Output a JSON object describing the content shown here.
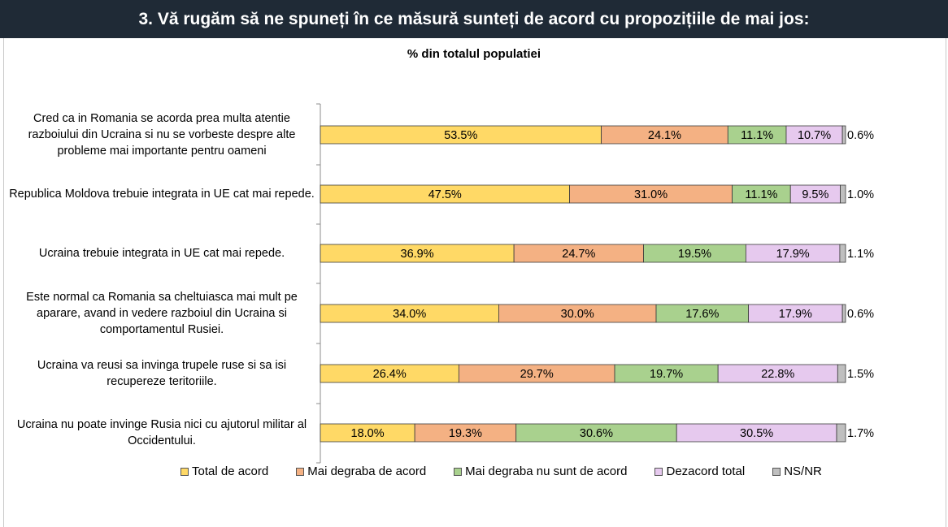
{
  "header": {
    "title": "3. Vă rugăm să ne spuneți în ce măsură sunteți de acord cu propozițiile  de mai jos:"
  },
  "chart_data": {
    "type": "bar",
    "orientation": "horizontal",
    "stacked": true,
    "subtitle": "% din totalul populatiei",
    "categories": [
      "Cred ca in Romania se acorda prea multa atentie razboiului din Ucraina si nu se vorbeste despre alte probleme mai importante pentru oameni",
      "Republica Moldova trebuie integrata in UE cat mai repede.",
      "Ucraina trebuie integrata in UE cat mai repede.",
      "Este normal ca Romania sa cheltuiasca mai mult pe aparare, avand in vedere razboiul din Ucraina si comportamentul Rusiei.",
      "Ucraina va reusi sa invinga trupele ruse si sa isi recupereze teritoriile.",
      "Ucraina nu poate invinge Rusia nici cu ajutorul militar al Occidentului."
    ],
    "series": [
      {
        "name": "Total de acord",
        "color": "#ffd966",
        "values": [
          53.5,
          47.5,
          36.9,
          34.0,
          26.4,
          18.0
        ]
      },
      {
        "name": "Mai degraba de acord",
        "color": "#f4b183",
        "values": [
          24.1,
          31.0,
          24.7,
          30.0,
          29.7,
          19.3
        ]
      },
      {
        "name": "Mai degraba nu sunt de acord",
        "color": "#a9d18e",
        "values": [
          11.1,
          11.1,
          19.5,
          17.6,
          19.7,
          30.6
        ]
      },
      {
        "name": "Dezacord total",
        "color": "#e6c9ee",
        "values": [
          10.7,
          9.5,
          17.9,
          17.9,
          22.8,
          30.5
        ]
      },
      {
        "name": "NS/NR",
        "color": "#bfbfbf",
        "values": [
          0.6,
          1.0,
          1.1,
          0.6,
          1.5,
          1.7
        ]
      }
    ],
    "value_labels": [
      [
        "53.5%",
        "24.1%",
        "11.1%",
        "10.7%",
        "0.6%"
      ],
      [
        "47.5%",
        "31.0%",
        "11.1%",
        "9.5%",
        "1.0%"
      ],
      [
        "36.9%",
        "24.7%",
        "19.5%",
        "17.9%",
        "1.1%"
      ],
      [
        "34.0%",
        "30.0%",
        "17.6%",
        "17.9%",
        "0.6%"
      ],
      [
        "26.4%",
        "29.7%",
        "19.7%",
        "22.8%",
        "1.5%"
      ],
      [
        "18.0%",
        "19.3%",
        "30.6%",
        "30.5%",
        "1.7%"
      ]
    ],
    "xlim": [
      0,
      100
    ],
    "legend_position": "bottom",
    "grid": false
  }
}
